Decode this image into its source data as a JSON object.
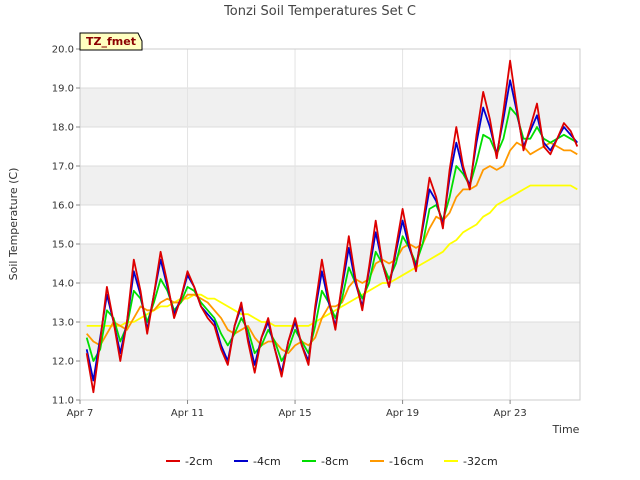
{
  "chart_data": {
    "type": "line",
    "title": "Tonzi Soil Temperatures Set C",
    "xlabel": "Time",
    "ylabel": "Soil Temperature (C)",
    "xlim": [
      0,
      18.6
    ],
    "ylim": [
      11.0,
      20.0
    ],
    "y_ticks": [
      11.0,
      12.0,
      13.0,
      14.0,
      15.0,
      16.0,
      17.0,
      18.0,
      19.0,
      20.0
    ],
    "x_ticks": [
      {
        "value": 0,
        "label": "Apr 7"
      },
      {
        "value": 4,
        "label": "Apr 11"
      },
      {
        "value": 8,
        "label": "Apr 15"
      },
      {
        "value": 12,
        "label": "Apr 19"
      },
      {
        "value": 16,
        "label": "Apr 23"
      }
    ],
    "grid": true,
    "legend_position": "bottom",
    "site_badge": "TZ_fmet",
    "x": [
      0.25,
      0.5,
      0.75,
      1.0,
      1.25,
      1.5,
      1.75,
      2.0,
      2.25,
      2.5,
      2.75,
      3.0,
      3.25,
      3.5,
      3.75,
      4.0,
      4.25,
      4.5,
      4.75,
      5.0,
      5.25,
      5.5,
      5.75,
      6.0,
      6.25,
      6.5,
      6.75,
      7.0,
      7.25,
      7.5,
      7.75,
      8.0,
      8.25,
      8.5,
      8.75,
      9.0,
      9.25,
      9.5,
      9.75,
      10.0,
      10.25,
      10.5,
      10.75,
      11.0,
      11.25,
      11.5,
      11.75,
      12.0,
      12.25,
      12.5,
      12.75,
      13.0,
      13.25,
      13.5,
      13.75,
      14.0,
      14.25,
      14.5,
      14.75,
      15.0,
      15.25,
      15.5,
      15.75,
      16.0,
      16.25,
      16.5,
      16.75,
      17.0,
      17.25,
      17.5,
      17.75,
      18.0,
      18.25,
      18.5
    ],
    "series": [
      {
        "name": "-2cm",
        "color": "#dd0000",
        "values": [
          12.2,
          11.2,
          12.5,
          13.9,
          13.0,
          12.0,
          13.0,
          14.6,
          13.8,
          12.7,
          13.7,
          14.8,
          14.0,
          13.1,
          13.6,
          14.3,
          13.9,
          13.4,
          13.1,
          12.9,
          12.3,
          11.9,
          12.9,
          13.5,
          12.5,
          11.7,
          12.6,
          13.1,
          12.3,
          11.6,
          12.5,
          13.1,
          12.4,
          11.9,
          13.4,
          14.6,
          13.6,
          12.8,
          14.0,
          15.2,
          14.1,
          13.3,
          14.4,
          15.6,
          14.5,
          13.9,
          14.9,
          15.9,
          15.0,
          14.3,
          15.5,
          16.7,
          16.2,
          15.4,
          16.9,
          18.0,
          17.0,
          16.4,
          17.8,
          18.9,
          18.2,
          17.2,
          18.4,
          19.7,
          18.5,
          17.4,
          18.0,
          18.6,
          17.5,
          17.3,
          17.7,
          18.1,
          17.9,
          17.5
        ]
      },
      {
        "name": "-4cm",
        "color": "#0000cc",
        "values": [
          12.3,
          11.5,
          12.6,
          13.7,
          13.0,
          12.2,
          13.0,
          14.3,
          13.7,
          12.8,
          13.7,
          14.6,
          13.9,
          13.2,
          13.6,
          14.2,
          13.9,
          13.4,
          13.2,
          13.0,
          12.4,
          12.0,
          12.9,
          13.4,
          12.6,
          11.9,
          12.6,
          13.0,
          12.3,
          11.7,
          12.5,
          13.0,
          12.4,
          12.0,
          13.3,
          14.3,
          13.5,
          12.9,
          13.9,
          14.9,
          14.0,
          13.4,
          14.3,
          15.3,
          14.5,
          13.9,
          14.8,
          15.6,
          14.9,
          14.4,
          15.4,
          16.4,
          16.1,
          15.5,
          16.7,
          17.6,
          16.9,
          16.5,
          17.6,
          18.5,
          18.0,
          17.3,
          18.2,
          19.2,
          18.4,
          17.5,
          17.9,
          18.3,
          17.6,
          17.4,
          17.7,
          18.0,
          17.8,
          17.6
        ]
      },
      {
        "name": "-8cm",
        "color": "#00dd00",
        "values": [
          12.6,
          12.0,
          12.3,
          13.3,
          13.1,
          12.5,
          12.9,
          13.8,
          13.6,
          13.0,
          13.5,
          14.1,
          13.8,
          13.3,
          13.5,
          13.9,
          13.8,
          13.5,
          13.3,
          13.1,
          12.7,
          12.4,
          12.7,
          13.1,
          12.8,
          12.2,
          12.4,
          12.8,
          12.5,
          12.0,
          12.3,
          12.8,
          12.5,
          12.2,
          12.9,
          13.8,
          13.5,
          13.1,
          13.6,
          14.4,
          14.0,
          13.6,
          14.0,
          14.8,
          14.5,
          14.1,
          14.5,
          15.2,
          14.9,
          14.5,
          15.0,
          15.9,
          16.0,
          15.6,
          16.2,
          17.0,
          16.8,
          16.5,
          17.1,
          17.8,
          17.7,
          17.3,
          17.7,
          18.5,
          18.3,
          17.7,
          17.7,
          18.0,
          17.7,
          17.6,
          17.7,
          17.8,
          17.7,
          17.6
        ]
      },
      {
        "name": "-16cm",
        "color": "#ff9900",
        "values": [
          12.7,
          12.5,
          12.4,
          12.7,
          13.0,
          12.9,
          12.8,
          13.1,
          13.4,
          13.3,
          13.3,
          13.5,
          13.6,
          13.5,
          13.5,
          13.7,
          13.7,
          13.6,
          13.5,
          13.3,
          13.1,
          12.8,
          12.7,
          12.8,
          12.9,
          12.6,
          12.4,
          12.5,
          12.5,
          12.3,
          12.2,
          12.4,
          12.5,
          12.4,
          12.6,
          13.1,
          13.4,
          13.4,
          13.5,
          13.9,
          14.1,
          14.0,
          14.1,
          14.5,
          14.6,
          14.5,
          14.6,
          14.9,
          15.0,
          14.9,
          15.0,
          15.4,
          15.7,
          15.6,
          15.8,
          16.2,
          16.4,
          16.4,
          16.5,
          16.9,
          17.0,
          16.9,
          17.0,
          17.4,
          17.6,
          17.5,
          17.3,
          17.4,
          17.5,
          17.6,
          17.5,
          17.4,
          17.4,
          17.3
        ]
      },
      {
        "name": "-32cm",
        "color": "#ffff00",
        "values": [
          12.9,
          12.9,
          12.9,
          12.9,
          12.9,
          12.9,
          13.0,
          13.0,
          13.1,
          13.2,
          13.3,
          13.4,
          13.4,
          13.5,
          13.6,
          13.6,
          13.7,
          13.7,
          13.6,
          13.6,
          13.5,
          13.4,
          13.3,
          13.2,
          13.2,
          13.1,
          13.0,
          13.0,
          12.9,
          12.9,
          12.9,
          12.9,
          12.9,
          12.9,
          13.0,
          13.1,
          13.2,
          13.3,
          13.4,
          13.5,
          13.6,
          13.7,
          13.8,
          13.9,
          14.0,
          14.0,
          14.1,
          14.2,
          14.3,
          14.4,
          14.5,
          14.6,
          14.7,
          14.8,
          15.0,
          15.1,
          15.3,
          15.4,
          15.5,
          15.7,
          15.8,
          16.0,
          16.1,
          16.2,
          16.3,
          16.4,
          16.5,
          16.5,
          16.5,
          16.5,
          16.5,
          16.5,
          16.5,
          16.4
        ]
      }
    ]
  }
}
